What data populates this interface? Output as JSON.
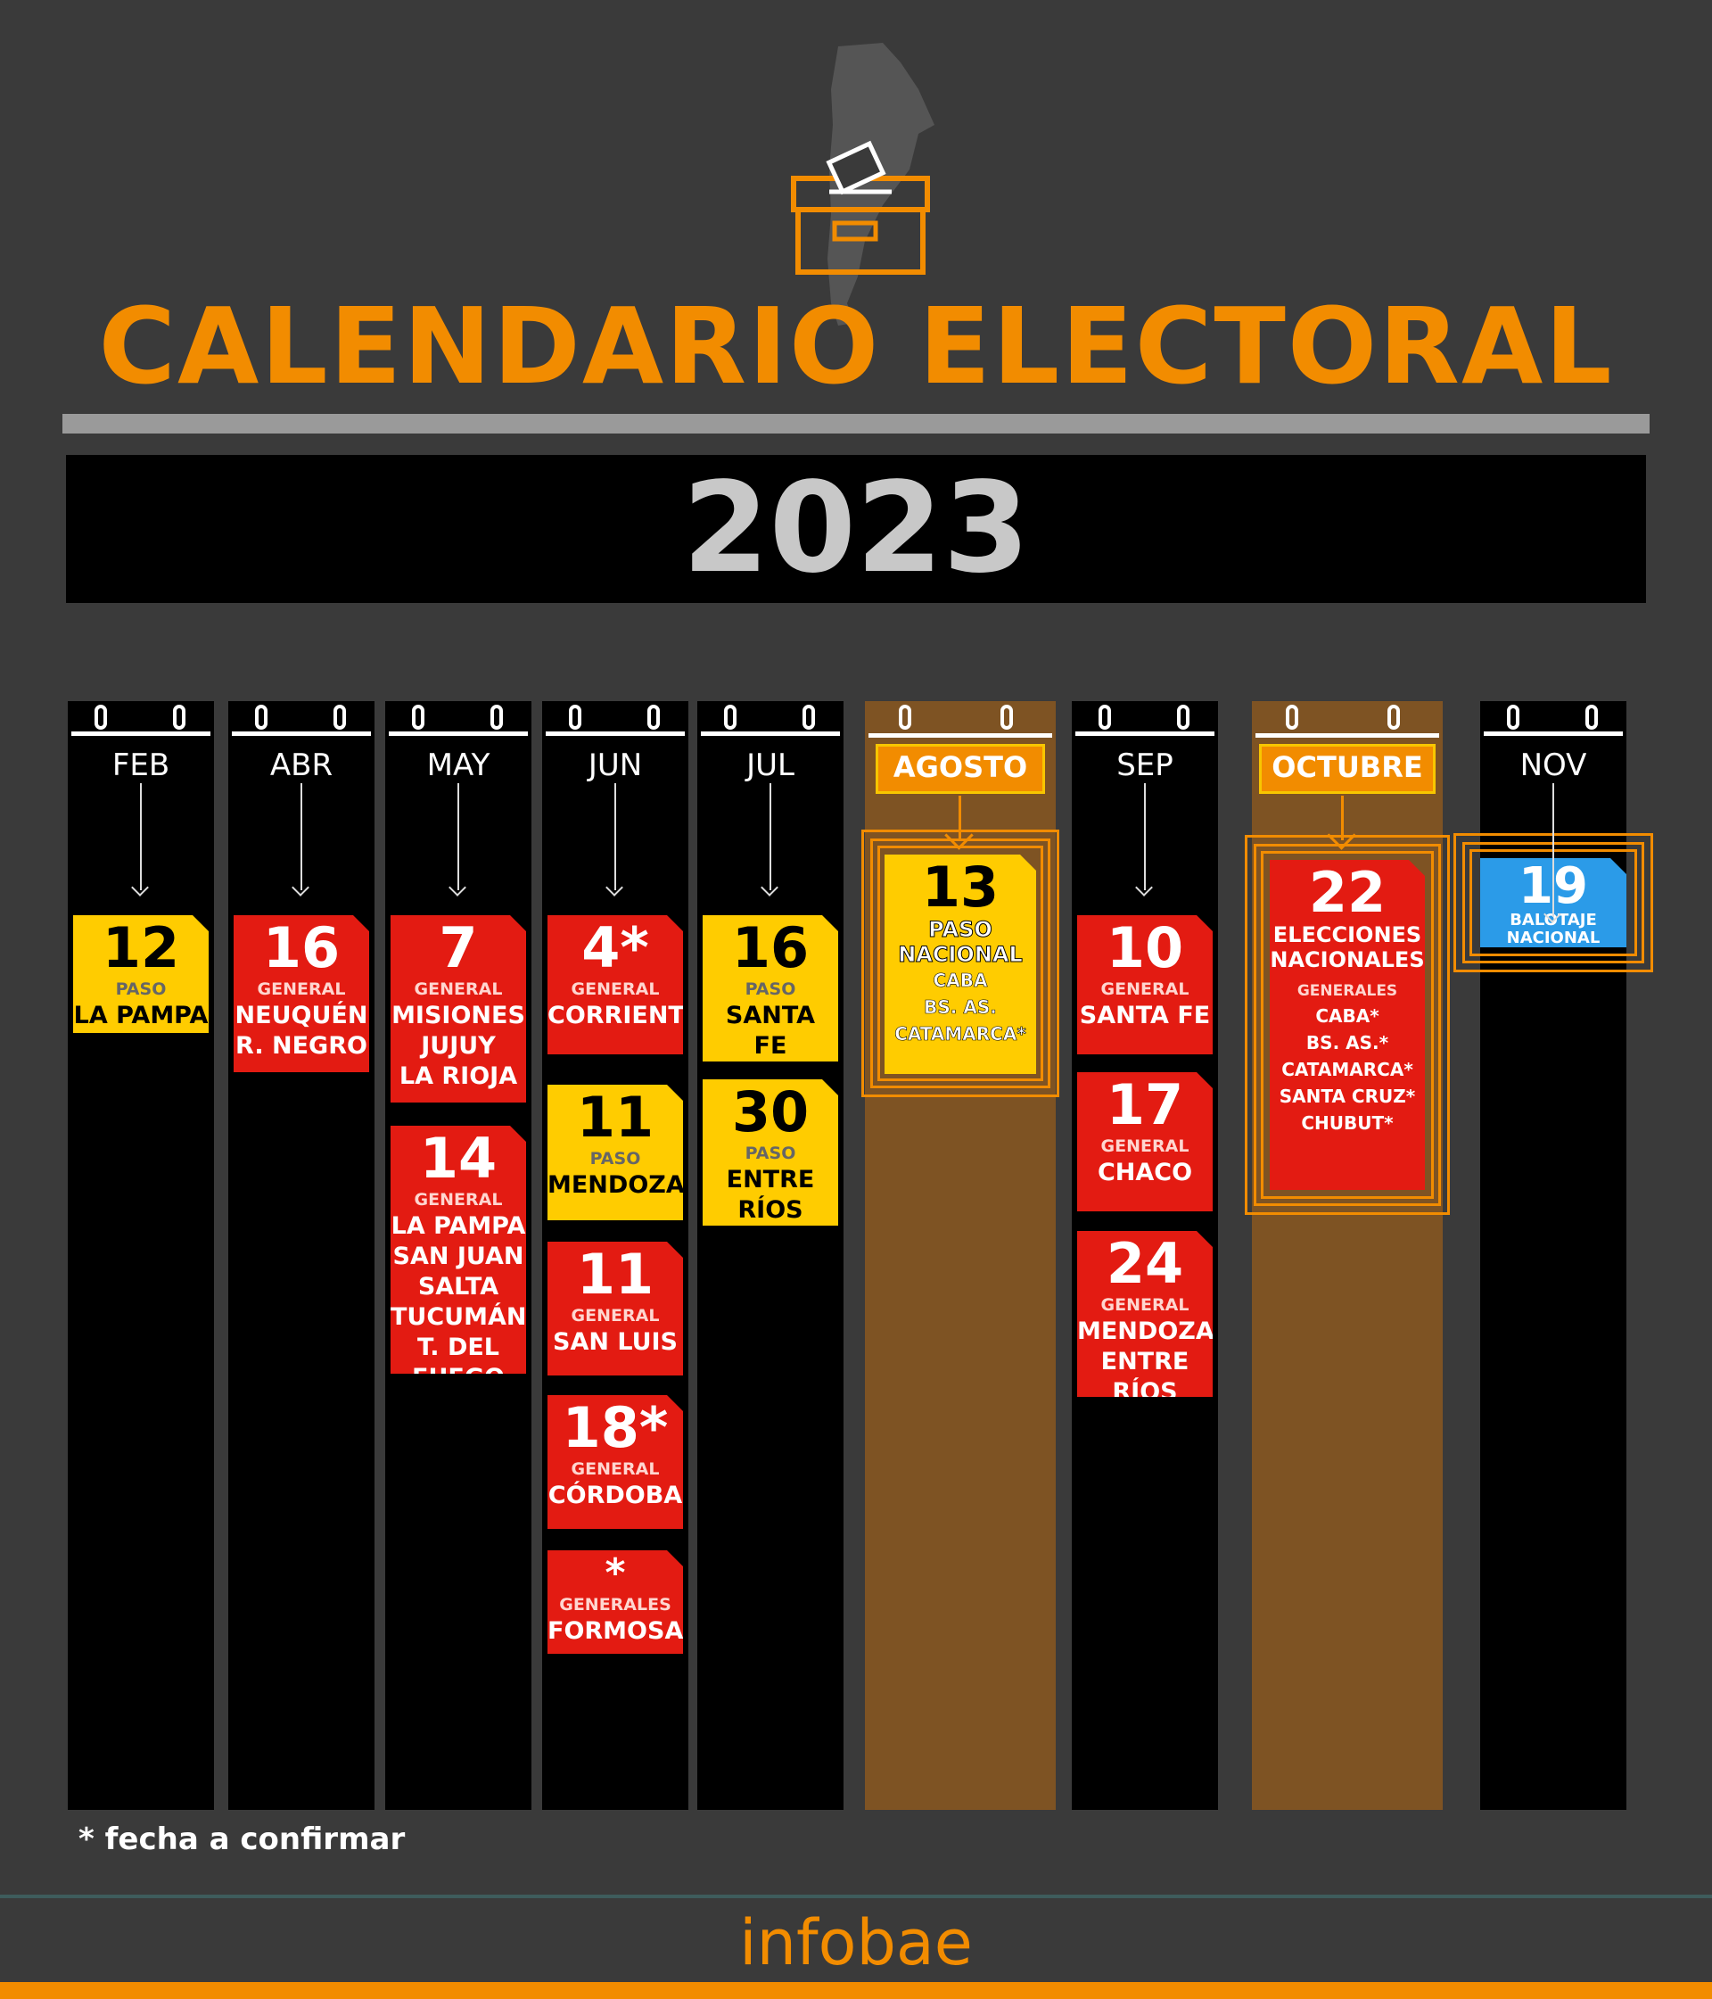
{
  "header": {
    "title": "CALENDARIO ELECTORAL",
    "year": "2023",
    "icon": "ballot-box-icon",
    "accent_color": "#f28c00"
  },
  "months": [
    {
      "label": "FEB",
      "highlight": false,
      "events": [
        {
          "day": "12",
          "type": "PASO",
          "places": [
            "LA PAMPA"
          ],
          "color": "yellow"
        }
      ]
    },
    {
      "label": "ABR",
      "highlight": false,
      "events": [
        {
          "day": "16",
          "type": "GENERAL",
          "places": [
            "NEUQUÉN",
            "R. NEGRO"
          ],
          "color": "red"
        }
      ]
    },
    {
      "label": "MAY",
      "highlight": false,
      "events": [
        {
          "day": "7",
          "type": "GENERAL",
          "places": [
            "MISIONES",
            "JUJUY",
            "LA RIOJA"
          ],
          "color": "red"
        },
        {
          "day": "14",
          "type": "GENERAL",
          "places": [
            "LA PAMPA",
            "SAN JUAN",
            "SALTA",
            "TUCUMÁN",
            "T. DEL FUEGO"
          ],
          "color": "red"
        }
      ]
    },
    {
      "label": "JUN",
      "highlight": false,
      "events": [
        {
          "day": "4*",
          "type": "GENERAL",
          "places": [
            "CORRIENTES"
          ],
          "color": "red"
        },
        {
          "day": "11",
          "type": "PASO",
          "places": [
            "MENDOZA"
          ],
          "color": "yellow"
        },
        {
          "day": "11",
          "type": "GENERAL",
          "places": [
            "SAN LUIS"
          ],
          "color": "red"
        },
        {
          "day": "18*",
          "type": "GENERAL",
          "places": [
            "CÓRDOBA"
          ],
          "color": "red"
        },
        {
          "day": "*",
          "type": "GENERALES",
          "places": [
            "FORMOSA"
          ],
          "color": "red"
        }
      ]
    },
    {
      "label": "JUL",
      "highlight": false,
      "events": [
        {
          "day": "16",
          "type": "PASO",
          "places": [
            "SANTA",
            "FE"
          ],
          "color": "yellow"
        },
        {
          "day": "30",
          "type": "PASO",
          "places": [
            "ENTRE",
            "RÍOS"
          ],
          "color": "yellow"
        }
      ]
    },
    {
      "label": "AGOSTO",
      "highlight": true,
      "events": [
        {
          "day": "13",
          "title": [
            "PASO",
            "NACIONAL"
          ],
          "places": [
            "CABA",
            "BS. AS.",
            "CATAMARCA*"
          ],
          "color": "yellow"
        }
      ]
    },
    {
      "label": "SEP",
      "highlight": false,
      "events": [
        {
          "day": "10",
          "type": "GENERAL",
          "places": [
            "SANTA FE"
          ],
          "color": "red"
        },
        {
          "day": "17",
          "type": "GENERAL",
          "places": [
            "CHACO"
          ],
          "color": "red"
        },
        {
          "day": "24",
          "type": "GENERAL",
          "places": [
            "MENDOZA",
            "ENTRE RÍOS"
          ],
          "color": "red"
        }
      ]
    },
    {
      "label": "OCTUBRE",
      "highlight": true,
      "events": [
        {
          "day": "22",
          "title": [
            "ELECCIONES",
            "NACIONALES"
          ],
          "type": "GENERALES",
          "places": [
            "CABA*",
            "BS. AS.*",
            "CATAMARCA*",
            "SANTA CRUZ*",
            "CHUBUT*"
          ],
          "color": "red"
        }
      ]
    },
    {
      "label": "NOV",
      "highlight": false,
      "events": [
        {
          "day": "19",
          "title": [
            "BALOTAJE",
            "NACIONAL"
          ],
          "color": "blue"
        }
      ]
    }
  ],
  "footnote": "*  fecha a confirmar",
  "brand": "infobae"
}
